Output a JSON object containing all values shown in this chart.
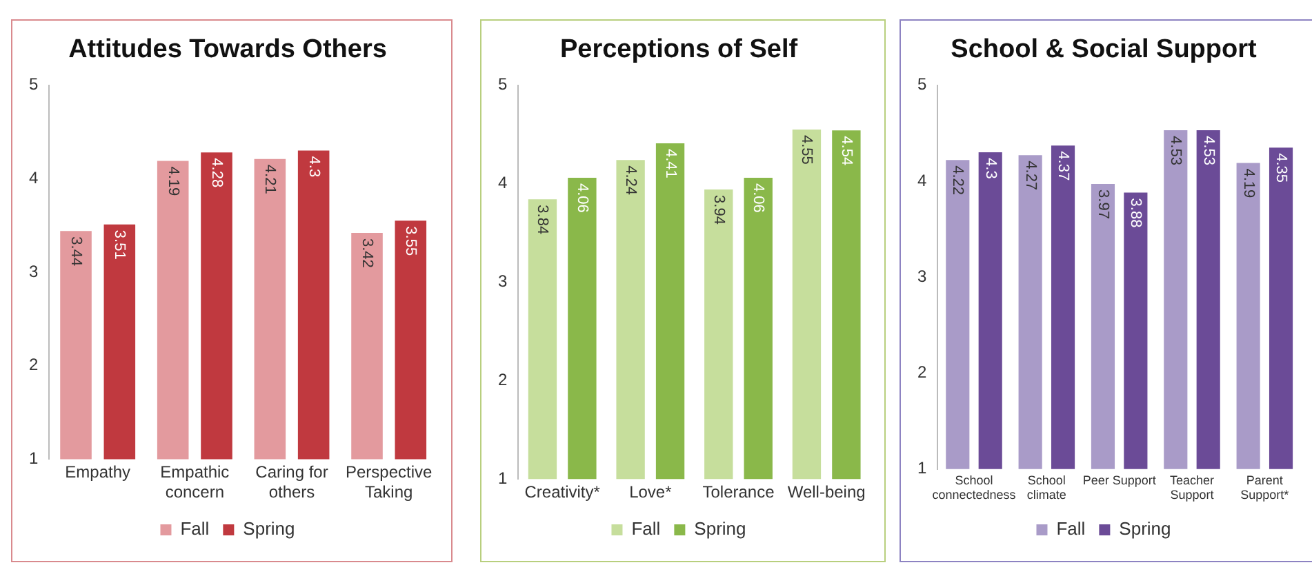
{
  "chart_data": [
    {
      "type": "bar",
      "title": "Attitudes Towards Others",
      "categories": [
        "Empathy",
        "Empathic concern",
        "Caring for others",
        "Perspective Taking"
      ],
      "series": [
        {
          "name": "Fall",
          "color": "#e39a9e",
          "values": [
            3.44,
            4.19,
            4.21,
            3.42
          ]
        },
        {
          "name": "Spring",
          "color": "#c0393f",
          "values": [
            3.51,
            4.28,
            4.3,
            3.55
          ]
        }
      ],
      "ylim": [
        1,
        5
      ],
      "yticks": [
        1,
        2,
        3,
        4,
        5
      ],
      "grid": false,
      "legend": "bottom",
      "data_labels": true
    },
    {
      "type": "bar",
      "title": "Perceptions of Self",
      "categories": [
        "Creativity*",
        "Love*",
        "Tolerance",
        "Well-being"
      ],
      "series": [
        {
          "name": "Fall",
          "color": "#c6de9c",
          "values": [
            3.84,
            4.24,
            3.94,
            4.55
          ]
        },
        {
          "name": "Spring",
          "color": "#8ab84a",
          "values": [
            4.06,
            4.41,
            4.06,
            4.54
          ]
        }
      ],
      "ylim": [
        1,
        5
      ],
      "yticks": [
        1,
        2,
        3,
        4,
        5
      ],
      "grid": false,
      "legend": "bottom",
      "data_labels": true
    },
    {
      "type": "bar",
      "title": "School & Social Support",
      "categories": [
        "School connectedness",
        "School climate",
        "Peer Support",
        "Teacher Support",
        "Parent Support*"
      ],
      "series": [
        {
          "name": "Fall",
          "color": "#a99bc8",
          "values": [
            4.22,
            4.27,
            3.97,
            4.53,
            4.19
          ]
        },
        {
          "name": "Spring",
          "color": "#6b4b97",
          "values": [
            4.3,
            4.37,
            3.88,
            4.53,
            4.35
          ]
        }
      ],
      "ylim": [
        1,
        5
      ],
      "yticks": [
        1,
        2,
        3,
        4,
        5
      ],
      "grid": false,
      "legend": "bottom",
      "data_labels": true
    }
  ]
}
